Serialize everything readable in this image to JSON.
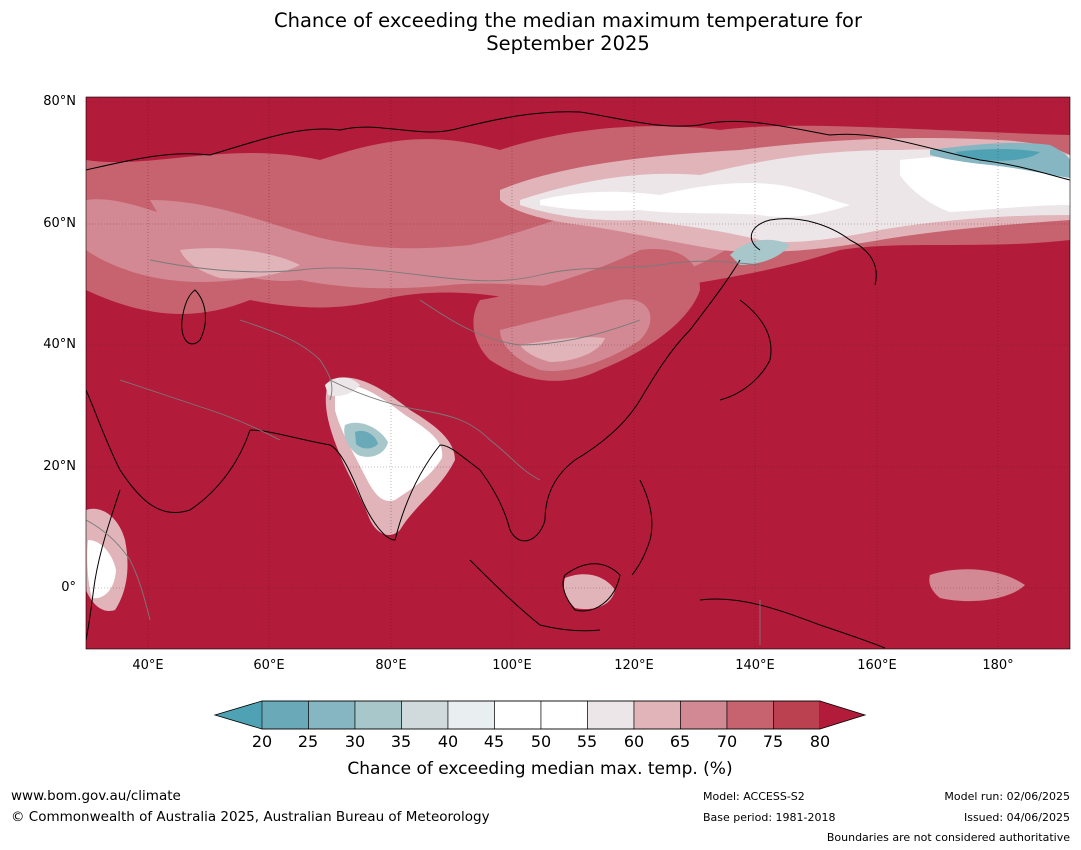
{
  "title_line1": "Chance of exceeding the median maximum temperature for",
  "title_line2": "September 2025",
  "map": {
    "lat_labels": [
      "80°N",
      "60°N",
      "40°N",
      "20°N",
      "0°"
    ],
    "lon_labels": [
      "40°E",
      "60°E",
      "80°E",
      "100°E",
      "120°E",
      "140°E",
      "160°E",
      "180°"
    ],
    "lat_range": [
      -10,
      80
    ],
    "lon_range": [
      30,
      192
    ]
  },
  "colorbar": {
    "ticks": [
      "20",
      "25",
      "30",
      "35",
      "40",
      "45",
      "50",
      "55",
      "60",
      "65",
      "70",
      "75",
      "80"
    ],
    "colors": [
      "#6aaab8",
      "#86b6c2",
      "#a7c7cb",
      "#d0d9db",
      "#e9eff0",
      "#ffffff",
      "#ffffff",
      "#ede6e8",
      "#e0b4b9",
      "#d38993",
      "#c7636f",
      "#bc4150"
    ],
    "low_extend_color": "#4fa2b3",
    "high_extend_color": "#b31b3a",
    "label": "Chance of exceeding median max. temp. (%)"
  },
  "colors": {
    "dominant": "#b31b3a",
    "warm": "#c7636f",
    "light": "#e0b4b9",
    "near_median": "#ffffff",
    "cool": "#6aaab8"
  },
  "footer": {
    "website": "www.bom.gov.au/climate",
    "copyright": "© Commonwealth of Australia 2025, Australian Bureau of Meteorology",
    "model": "Model: ACCESS-S2",
    "base_period": "Base period: 1981-2018",
    "model_run": "Model run: 02/06/2025",
    "issued": "Issued: 04/06/2025",
    "disclaimer": "Boundaries are not considered authoritative"
  }
}
